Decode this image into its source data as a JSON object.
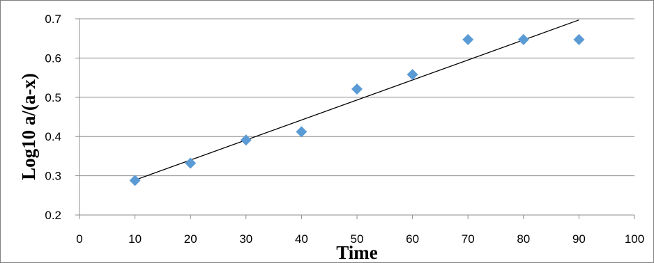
{
  "chart_data": {
    "type": "scatter",
    "title": "",
    "xlabel": "Time",
    "ylabel": "Log10 a/(a-x)",
    "xlim": [
      0,
      100
    ],
    "ylim": [
      0.2,
      0.7
    ],
    "x_ticks": [
      "0",
      "10",
      "20",
      "30",
      "40",
      "50",
      "60",
      "70",
      "80",
      "90",
      "100"
    ],
    "y_ticks": [
      "0.2",
      "0.3",
      "0.4",
      "0.5",
      "0.6",
      "0.7"
    ],
    "grid": "horizontal",
    "legend": "none",
    "series": [
      {
        "marker": "diamond",
        "color": "#5b9bd5",
        "x": [
          10,
          20,
          30,
          40,
          50,
          60,
          70,
          80,
          90
        ],
        "y": [
          0.288,
          0.332,
          0.391,
          0.412,
          0.521,
          0.558,
          0.647,
          0.647,
          0.647
        ]
      }
    ],
    "trendline": {
      "type": "linear",
      "color": "#000000",
      "x": [
        10,
        90
      ],
      "y": [
        0.289,
        0.697
      ]
    },
    "colors": {
      "grid": "#8c8c8c",
      "axis": "#8c8c8c",
      "border": "#7f7f7f"
    }
  }
}
